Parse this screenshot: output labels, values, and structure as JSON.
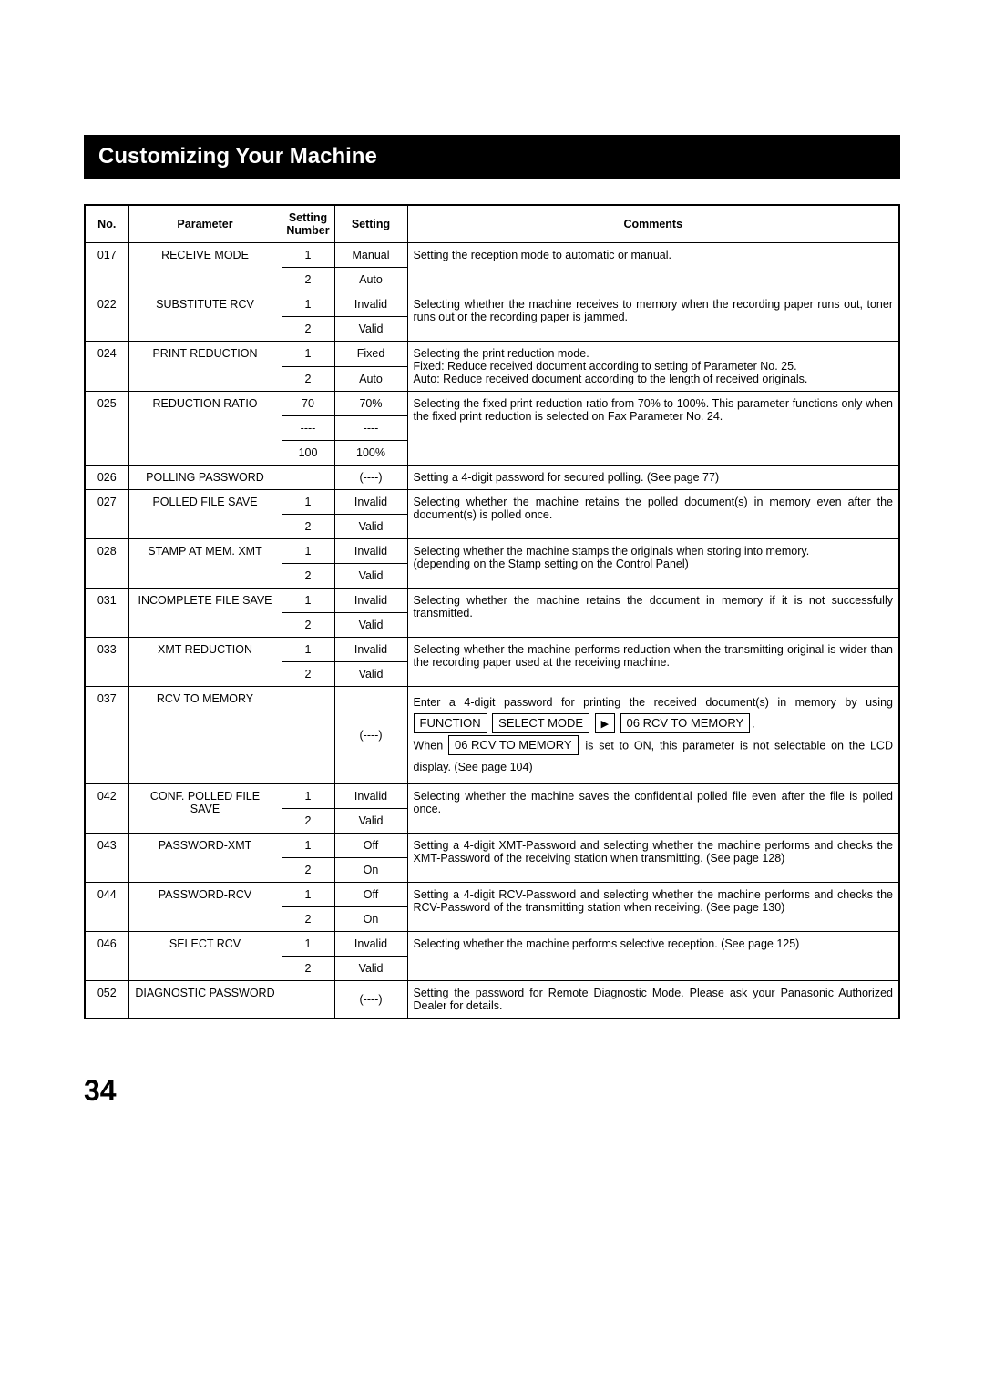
{
  "title": "Customizing Your Machine",
  "page_number": "34",
  "headers": {
    "no": "No.",
    "parameter": "Parameter",
    "setting_number": "Setting Number",
    "setting": "Setting",
    "comments": "Comments"
  },
  "rows": [
    {
      "no": "017",
      "param": "RECEIVE MODE",
      "settings": [
        {
          "num": "1",
          "set": "Manual"
        },
        {
          "num": "2",
          "set": "Auto"
        }
      ],
      "comment_plain": "Setting the reception mode to automatic or manual."
    },
    {
      "no": "022",
      "param": "SUBSTITUTE RCV",
      "settings": [
        {
          "num": "1",
          "set": "Invalid"
        },
        {
          "num": "2",
          "set": "Valid"
        }
      ],
      "comment_plain": "Selecting whether the machine receives to memory when the recording paper runs out, toner runs out or the recording paper is jammed."
    },
    {
      "no": "024",
      "param": "PRINT REDUCTION",
      "settings": [
        {
          "num": "1",
          "set": "Fixed"
        },
        {
          "num": "2",
          "set": "Auto"
        }
      ],
      "comment_html": "Selecting the print reduction mode.<br>Fixed: Reduce received document according to setting of Parameter No. 25.<br>Auto: Reduce received document according to the length of received originals."
    },
    {
      "no": "025",
      "param": "REDUCTION RATIO",
      "settings": [
        {
          "num": "70",
          "set": "70%"
        },
        {
          "num": "----",
          "set": "----"
        },
        {
          "num": "100",
          "set": "100%"
        }
      ],
      "comment_plain": "Selecting the fixed print reduction ratio from 70% to 100%. This parameter functions only when the fixed print reduction is selected on Fax Parameter No. 24."
    },
    {
      "no": "026",
      "param": "POLLING PASSWORD",
      "settings": [
        {
          "num": "",
          "set": "(----)"
        }
      ],
      "comment_plain": "Setting a 4-digit password for secured polling.  (See page 77)"
    },
    {
      "no": "027",
      "param": "POLLED FILE SAVE",
      "settings": [
        {
          "num": "1",
          "set": "Invalid"
        },
        {
          "num": "2",
          "set": "Valid"
        }
      ],
      "comment_plain": "Selecting whether the machine retains the polled document(s) in memory even after the document(s) is polled once."
    },
    {
      "no": "028",
      "param": "STAMP AT MEM. XMT",
      "settings": [
        {
          "num": "1",
          "set": "Invalid"
        },
        {
          "num": "2",
          "set": "Valid"
        }
      ],
      "comment_html": "Selecting whether the machine stamps the originals when storing into memory.<br>(depending on the Stamp setting on the Control Panel)"
    },
    {
      "no": "031",
      "param": "INCOMPLETE FILE SAVE",
      "settings": [
        {
          "num": "1",
          "set": "Invalid"
        },
        {
          "num": "2",
          "set": "Valid"
        }
      ],
      "comment_plain": "Selecting whether the machine retains the document in memory if it is not successfully transmitted."
    },
    {
      "no": "033",
      "param": "XMT REDUCTION",
      "settings": [
        {
          "num": "1",
          "set": "Invalid"
        },
        {
          "num": "2",
          "set": "Valid"
        }
      ],
      "comment_plain": "Selecting whether the machine performs reduction when the transmitting original is wider than the recording paper used at the receiving machine."
    },
    {
      "no": "037",
      "param": "RCV TO MEMORY",
      "settings": [
        {
          "num": "",
          "set": "(----)"
        }
      ],
      "comment_037": true,
      "c037_before": "Enter a 4-digit password for printing the received document(s) in memory by using ",
      "c037_key1": "FUNCTION",
      "c037_key2": "SELECT MODE",
      "c037_key3": "06 RCV TO MEMORY",
      "c037_mid": ".",
      "c037_when": "When ",
      "c037_key4": "06 RCV TO MEMORY",
      "c037_after": " is set to ON, this parameter is not selectable on the LCD display. (See page 104)"
    },
    {
      "no": "042",
      "param": "CONF. POLLED FILE SAVE",
      "settings": [
        {
          "num": "1",
          "set": "Invalid"
        },
        {
          "num": "2",
          "set": "Valid"
        }
      ],
      "comment_plain": "Selecting whether the machine saves the confidential polled file even after the file is polled once."
    },
    {
      "no": "043",
      "param": "PASSWORD-XMT",
      "settings": [
        {
          "num": "1",
          "set": "Off"
        },
        {
          "num": "2",
          "set": "On"
        }
      ],
      "comment_plain": "Setting a 4-digit XMT-Password and selecting whether the machine performs and checks the XMT-Password of the receiving station when transmitting.  (See page 128)"
    },
    {
      "no": "044",
      "param": "PASSWORD-RCV",
      "settings": [
        {
          "num": "1",
          "set": "Off"
        },
        {
          "num": "2",
          "set": "On"
        }
      ],
      "comment_plain": "Setting a 4-digit RCV-Password and selecting whether the machine performs and checks the RCV-Password of the transmitting station when receiving.  (See page 130)"
    },
    {
      "no": "046",
      "param": "SELECT RCV",
      "settings": [
        {
          "num": "1",
          "set": "Invalid"
        },
        {
          "num": "2",
          "set": "Valid"
        }
      ],
      "comment_plain": "Selecting whether the machine performs selective reception.  (See page 125)"
    },
    {
      "no": "052",
      "param": "DIAGNOSTIC PASSWORD",
      "settings": [
        {
          "num": "",
          "set": "(----)"
        }
      ],
      "comment_plain": "Setting the password for Remote Diagnostic Mode.  Please ask your Panasonic Authorized Dealer for details."
    }
  ]
}
